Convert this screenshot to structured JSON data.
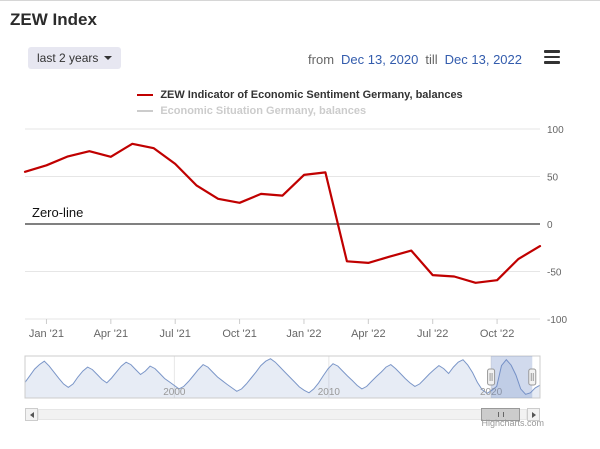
{
  "title": "ZEW Index",
  "range_selector": {
    "button_label": "last 2 years",
    "from_label": "from",
    "from_value": "Dec 13, 2020",
    "till_label": "till",
    "till_value": "Dec 13, 2022"
  },
  "legend": [
    {
      "label": "ZEW Indicator of Economic Sentiment Germany, balances",
      "color": "#c00000",
      "enabled": true
    },
    {
      "label": "Economic Situation Germany, balances",
      "color": "#cccccc",
      "enabled": false
    }
  ],
  "credits": "Highcharts.com",
  "colors": {
    "series_red": "#c00000",
    "disabled_gray": "#cccccc",
    "date_text_blue": "#335cad",
    "zero_plotline": "#808080",
    "navigator_line": "#7b96c8"
  },
  "chart_data": {
    "type": "line",
    "title": "ZEW Index",
    "main": {
      "series": [
        {
          "name": "ZEW Indicator of Economic Sentiment Germany, balances",
          "color": "#c00000",
          "visible": true,
          "values": [
            55.0,
            61.8,
            71.2,
            76.6,
            70.7,
            84.4,
            79.8,
            63.3,
            40.4,
            26.5,
            22.3,
            31.7,
            29.9,
            51.7,
            54.3,
            -39.3,
            -41.0,
            -34.3,
            -28.0,
            -53.8,
            -55.3,
            -61.9,
            -59.2,
            -36.7,
            -23.3
          ]
        },
        {
          "name": "Economic Situation Germany, balances",
          "color": "#cccccc",
          "visible": false
        }
      ],
      "ylim": [
        -100,
        100
      ],
      "yticks": [
        100,
        50,
        0,
        -50,
        -100
      ],
      "xtick_labels": [
        "Jan '21",
        "Apr '21",
        "Jul '21",
        "Oct '21",
        "Jan '22",
        "Apr '22",
        "Jul '22",
        "Oct '22"
      ],
      "xtick_indices": [
        1,
        4,
        7,
        10,
        13,
        16,
        19,
        22
      ],
      "plotline": {
        "value": 0,
        "label": "Zero-line"
      },
      "grid": true,
      "yaxis_side": "right"
    },
    "navigator": {
      "values": [
        -12,
        15,
        42,
        60,
        74,
        55,
        30,
        5,
        -18,
        -32,
        -18,
        10,
        34,
        50,
        40,
        20,
        0,
        -14,
        6,
        30,
        54,
        70,
        60,
        40,
        20,
        34,
        54,
        44,
        24,
        4,
        -10,
        -24,
        -38,
        -28,
        -8,
        16,
        40,
        60,
        50,
        30,
        10,
        -5,
        -20,
        -34,
        -48,
        -38,
        -18,
        6,
        30,
        56,
        74,
        84,
        70,
        50,
        30,
        10,
        -10,
        -30,
        -44,
        -54,
        -38,
        -14,
        16,
        44,
        64,
        54,
        34,
        14,
        -4,
        -24,
        -38,
        -28,
        -8,
        12,
        30,
        50,
        60,
        44,
        24,
        4,
        -14,
        -28,
        -18,
        2,
        22,
        40,
        56,
        44,
        24,
        50,
        70,
        80,
        58,
        28,
        -12,
        -42,
        -56,
        -44,
        -28,
        56,
        80,
        58,
        18,
        -38,
        -60,
        -54,
        -34,
        -23
      ],
      "ylim": [
        -75,
        95
      ],
      "xlabels": [
        {
          "label": "2000",
          "pos": 0.29
        },
        {
          "label": "2010",
          "pos": 0.59
        },
        {
          "label": "2020",
          "pos": 0.905
        }
      ],
      "selection": [
        0.905,
        0.985
      ]
    }
  }
}
